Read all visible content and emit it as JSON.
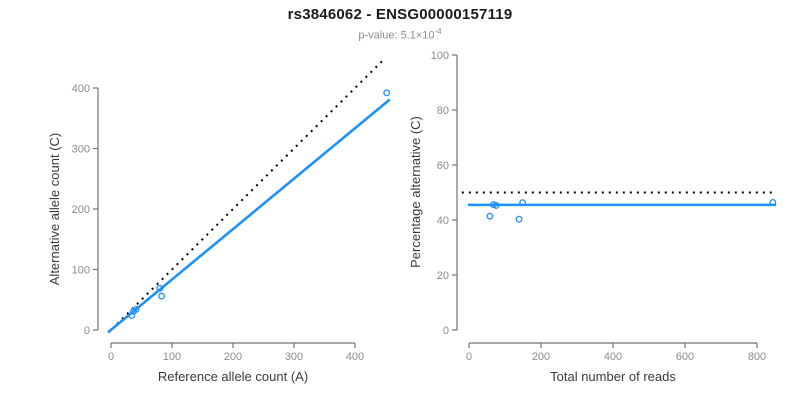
{
  "header": {
    "title": "rs3846062 - ENSG00000157119",
    "pvalue_label": "p-value: ",
    "pvalue_base": "5.1×10",
    "pvalue_exponent": "-4"
  },
  "colors": {
    "accent_blue": "#1E90FF",
    "dotted_line": "#000000",
    "axis": "#737373",
    "tick_label": "#8c8c8c",
    "axis_label": "#3a3a3a"
  },
  "chart_data": [
    {
      "type": "scatter",
      "panel": "left",
      "xlabel": "Reference allele count (A)",
      "ylabel": "Alternative allele count (C)",
      "xticks": [
        0,
        100,
        200,
        300,
        400
      ],
      "yticks": [
        0,
        100,
        200,
        300,
        400
      ],
      "xlim": [
        0,
        455
      ],
      "ylim": [
        0,
        455
      ],
      "grid": false,
      "points": [
        [
          34,
          24
        ],
        [
          37,
          31
        ],
        [
          41,
          34
        ],
        [
          83,
          56
        ],
        [
          80,
          69
        ],
        [
          452,
          392
        ]
      ],
      "lines": [
        {
          "name": "identity-line",
          "style": "dotted",
          "color_key": "dotted_line",
          "width": 2,
          "p1": [
            10,
            10
          ],
          "p2": [
            448,
            448
          ]
        },
        {
          "name": "fit-line",
          "style": "solid",
          "color_key": "accent_blue",
          "width": 2.6,
          "p1": [
            -5,
            -4
          ],
          "p2": [
            457,
            381
          ]
        }
      ]
    },
    {
      "type": "scatter",
      "panel": "right",
      "xlabel": "Total number of reads",
      "ylabel": "Percentage alternative (C)",
      "xticks": [
        0,
        200,
        400,
        600,
        800
      ],
      "yticks": [
        0,
        20,
        40,
        60,
        80,
        100
      ],
      "xlim": [
        0,
        850
      ],
      "ylim": [
        0,
        100
      ],
      "grid": false,
      "points": [
        [
          58,
          41.4
        ],
        [
          68,
          45.6
        ],
        [
          75,
          45.3
        ],
        [
          139,
          40.3
        ],
        [
          149,
          46.3
        ],
        [
          844,
          46.4
        ]
      ],
      "lines": [
        {
          "name": "expected-50-line",
          "style": "dotted",
          "color_key": "dotted_line",
          "width": 2,
          "p1": [
            -20,
            50
          ],
          "p2": [
            850,
            50
          ]
        },
        {
          "name": "estimate-line",
          "style": "solid",
          "color_key": "accent_blue",
          "width": 2.6,
          "p1": [
            -3,
            45.5
          ],
          "p2": [
            853,
            45.5
          ]
        }
      ]
    }
  ]
}
